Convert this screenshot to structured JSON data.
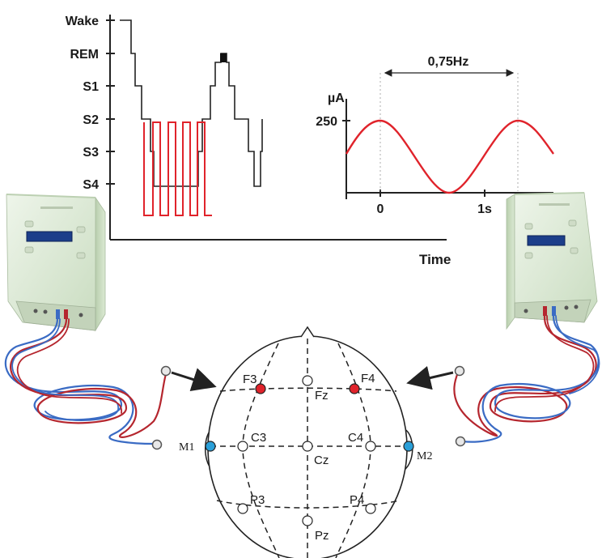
{
  "hypnogram": {
    "stages": [
      "Wake",
      "REM",
      "S1",
      "S2",
      "S3",
      "S4"
    ],
    "x_label": "Time"
  },
  "stimulation": {
    "frequency_label": "0,75Hz",
    "y_unit": "µA",
    "y_tick": "250",
    "x_ticks": [
      "0",
      "1s"
    ]
  },
  "electrodes": {
    "labels": [
      "F3",
      "F4",
      "Fz",
      "C3",
      "C4",
      "Cz",
      "M1",
      "M2",
      "P3",
      "P4",
      "Pz"
    ]
  },
  "colors": {
    "stimulation_wave": "#e0232b",
    "stimulation_electrode": "#e0232b",
    "reference_electrode": "#2a9fd8",
    "device_body": "#d9e8d2",
    "device_display": "#1c3e8a",
    "cable_red": "#b5262e",
    "cable_blue": "#3a6bc4"
  }
}
